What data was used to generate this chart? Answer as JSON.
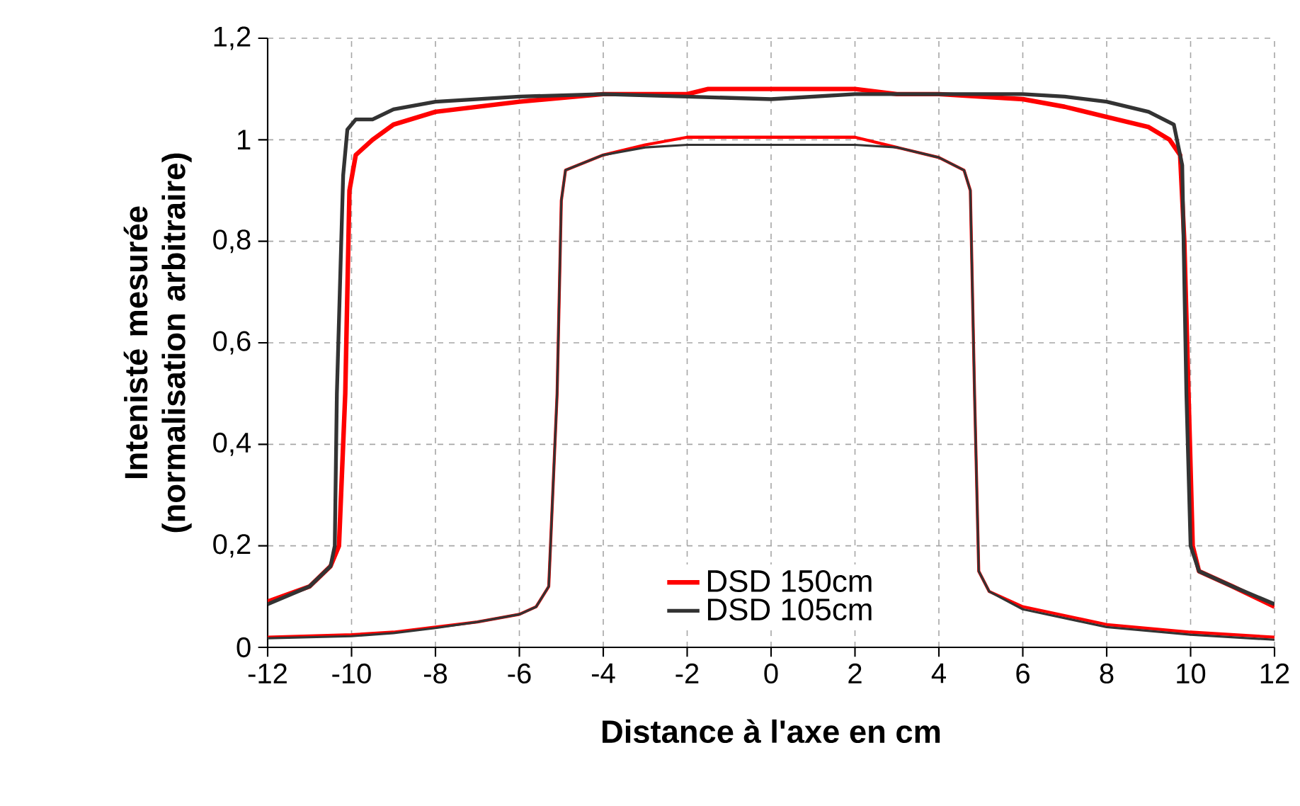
{
  "chart_data": {
    "type": "line",
    "xlabel": "Distance à l'axe en cm",
    "ylabel": "Intenisté mesurée (normalisation arbitraire)",
    "xlim": [
      -12,
      12
    ],
    "ylim": [
      0,
      1.2
    ],
    "xticks": [
      -12,
      -10,
      -8,
      -6,
      -4,
      -2,
      0,
      2,
      4,
      6,
      8,
      10,
      12
    ],
    "yticks": [
      0,
      {
        "value": 0.2,
        "label": "0,2"
      },
      {
        "value": 0.4,
        "label": "0,4"
      },
      {
        "value": 0.6,
        "label": "0,6"
      },
      {
        "value": 0.8,
        "label": "0,8"
      },
      1,
      {
        "value": 1.2,
        "label": "1,2"
      }
    ],
    "grid": true,
    "legend": "bottom",
    "marker": "none",
    "line_style": "solid",
    "series": [
      {
        "name": "DSD 150cm",
        "color": "#ff0000",
        "x": [
          -12,
          -11,
          -10.5,
          -10.3,
          -10.15,
          -10.05,
          -9.9,
          -9.5,
          -9,
          -8,
          -6,
          -4,
          -2,
          -1.5,
          0,
          2,
          3,
          4,
          6,
          7,
          8,
          9,
          9.5,
          9.75,
          9.85,
          9.95,
          10.05,
          10.2,
          11,
          12
        ],
        "values": [
          0.09,
          0.12,
          0.16,
          0.2,
          0.5,
          0.9,
          0.97,
          1.0,
          1.03,
          1.055,
          1.075,
          1.09,
          1.09,
          1.1,
          1.1,
          1.1,
          1.09,
          1.09,
          1.08,
          1.065,
          1.045,
          1.025,
          1.0,
          0.97,
          0.8,
          0.5,
          0.2,
          0.15,
          0.12,
          0.08
        ]
      },
      {
        "name": "DSD 105cm",
        "color": "#333333",
        "x": [
          -12,
          -11,
          -10.5,
          -10.4,
          -10.35,
          -10.2,
          -10.1,
          -9.9,
          -9.5,
          -9,
          -8,
          -6,
          -4,
          -2,
          0,
          2,
          4,
          6,
          7,
          8,
          9,
          9.6,
          9.8,
          9.9,
          10.0,
          10.2,
          11,
          12
        ],
        "values": [
          0.085,
          0.12,
          0.16,
          0.2,
          0.5,
          0.93,
          1.02,
          1.04,
          1.04,
          1.06,
          1.075,
          1.085,
          1.09,
          1.085,
          1.08,
          1.09,
          1.09,
          1.09,
          1.085,
          1.075,
          1.055,
          1.03,
          0.95,
          0.5,
          0.2,
          0.15,
          0.12,
          0.085
        ]
      },
      {
        "color": "#ff0000",
        "x": [
          -12,
          -10,
          -9,
          -8,
          -7,
          -6,
          -5.6,
          -5.3,
          -5.1,
          -5.0,
          -4.9,
          -4,
          -3,
          -2,
          0,
          2,
          3,
          4,
          4.6,
          4.75,
          4.85,
          4.95,
          5.2,
          6,
          8,
          10,
          12
        ],
        "values": [
          0.02,
          0.025,
          0.03,
          0.04,
          0.05,
          0.065,
          0.08,
          0.12,
          0.5,
          0.88,
          0.94,
          0.97,
          0.99,
          1.005,
          1.005,
          1.005,
          0.985,
          0.965,
          0.94,
          0.9,
          0.5,
          0.15,
          0.11,
          0.08,
          0.045,
          0.03,
          0.02
        ]
      },
      {
        "color": "#333333",
        "x": [
          -12,
          -10,
          -9,
          -8,
          -7,
          -6,
          -5.6,
          -5.3,
          -5.1,
          -5.0,
          -4.9,
          -4,
          -3,
          -2,
          0,
          2,
          3,
          4,
          4.6,
          4.75,
          4.85,
          4.95,
          5.2,
          6,
          8,
          10,
          12
        ],
        "values": [
          0.018,
          0.022,
          0.028,
          0.038,
          0.05,
          0.065,
          0.08,
          0.12,
          0.5,
          0.88,
          0.94,
          0.97,
          0.985,
          0.99,
          0.99,
          0.99,
          0.985,
          0.965,
          0.94,
          0.9,
          0.5,
          0.15,
          0.11,
          0.075,
          0.04,
          0.025,
          0.015
        ]
      }
    ]
  }
}
